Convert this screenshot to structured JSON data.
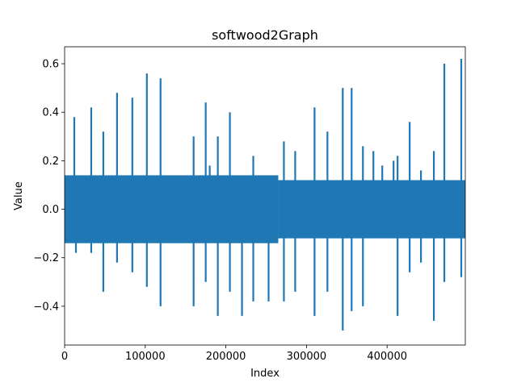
{
  "chart_data": {
    "type": "line",
    "title": "softwood2Graph",
    "xlabel": "Index",
    "ylabel": "Value",
    "xlim": [
      0,
      497000
    ],
    "ylim": [
      -0.56,
      0.67
    ],
    "grid": false,
    "legend": "none",
    "series_color": "#1f77b4",
    "x_ticks": [
      {
        "value": 0,
        "label": "0"
      },
      {
        "value": 100000,
        "label": "100000"
      },
      {
        "value": 200000,
        "label": "200000"
      },
      {
        "value": 300000,
        "label": "300000"
      },
      {
        "value": 400000,
        "label": "400000"
      }
    ],
    "y_ticks": [
      {
        "value": -0.4,
        "label": "−0.4"
      },
      {
        "value": -0.2,
        "label": "−0.2"
      },
      {
        "value": 0.0,
        "label": "0.0"
      },
      {
        "value": 0.2,
        "label": "0.2"
      },
      {
        "value": 0.4,
        "label": "0.4"
      },
      {
        "value": 0.6,
        "label": "0.6"
      }
    ],
    "envelope": [
      {
        "x_start": 0,
        "x_end": 265000,
        "min": -0.14,
        "max": 0.14
      },
      {
        "x_start": 265000,
        "x_end": 497000,
        "min": -0.12,
        "max": 0.12
      }
    ],
    "spikes": [
      {
        "x": 12000,
        "y": 0.38
      },
      {
        "x": 14000,
        "y": -0.18
      },
      {
        "x": 33000,
        "y": 0.42
      },
      {
        "x": 33000,
        "y": -0.18
      },
      {
        "x": 48000,
        "y": 0.32
      },
      {
        "x": 48000,
        "y": -0.34
      },
      {
        "x": 65000,
        "y": 0.48
      },
      {
        "x": 65000,
        "y": -0.22
      },
      {
        "x": 84000,
        "y": 0.46
      },
      {
        "x": 84000,
        "y": -0.26
      },
      {
        "x": 102000,
        "y": 0.56
      },
      {
        "x": 102000,
        "y": -0.32
      },
      {
        "x": 119000,
        "y": 0.54
      },
      {
        "x": 119000,
        "y": -0.4
      },
      {
        "x": 160000,
        "y": 0.3
      },
      {
        "x": 160000,
        "y": -0.4
      },
      {
        "x": 175000,
        "y": 0.44
      },
      {
        "x": 175000,
        "y": -0.3
      },
      {
        "x": 180000,
        "y": 0.18
      },
      {
        "x": 190000,
        "y": 0.3
      },
      {
        "x": 190000,
        "y": -0.44
      },
      {
        "x": 205000,
        "y": 0.4
      },
      {
        "x": 205000,
        "y": -0.34
      },
      {
        "x": 220000,
        "y": -0.44
      },
      {
        "x": 234000,
        "y": 0.22
      },
      {
        "x": 234000,
        "y": -0.38
      },
      {
        "x": 253000,
        "y": -0.38
      },
      {
        "x": 272000,
        "y": 0.28
      },
      {
        "x": 272000,
        "y": -0.38
      },
      {
        "x": 286000,
        "y": 0.24
      },
      {
        "x": 286000,
        "y": -0.34
      },
      {
        "x": 310000,
        "y": 0.42
      },
      {
        "x": 310000,
        "y": -0.44
      },
      {
        "x": 326000,
        "y": 0.32
      },
      {
        "x": 326000,
        "y": -0.34
      },
      {
        "x": 345000,
        "y": 0.5
      },
      {
        "x": 345000,
        "y": -0.5
      },
      {
        "x": 356000,
        "y": 0.5
      },
      {
        "x": 356000,
        "y": -0.42
      },
      {
        "x": 370000,
        "y": 0.26
      },
      {
        "x": 370000,
        "y": -0.4
      },
      {
        "x": 383000,
        "y": 0.24
      },
      {
        "x": 394000,
        "y": 0.18
      },
      {
        "x": 408000,
        "y": 0.2
      },
      {
        "x": 413000,
        "y": 0.22
      },
      {
        "x": 413000,
        "y": -0.44
      },
      {
        "x": 428000,
        "y": 0.36
      },
      {
        "x": 428000,
        "y": -0.26
      },
      {
        "x": 442000,
        "y": 0.16
      },
      {
        "x": 442000,
        "y": -0.22
      },
      {
        "x": 458000,
        "y": 0.24
      },
      {
        "x": 458000,
        "y": -0.46
      },
      {
        "x": 471000,
        "y": 0.6
      },
      {
        "x": 471000,
        "y": -0.3
      },
      {
        "x": 492000,
        "y": 0.62
      },
      {
        "x": 492000,
        "y": -0.28
      }
    ]
  }
}
